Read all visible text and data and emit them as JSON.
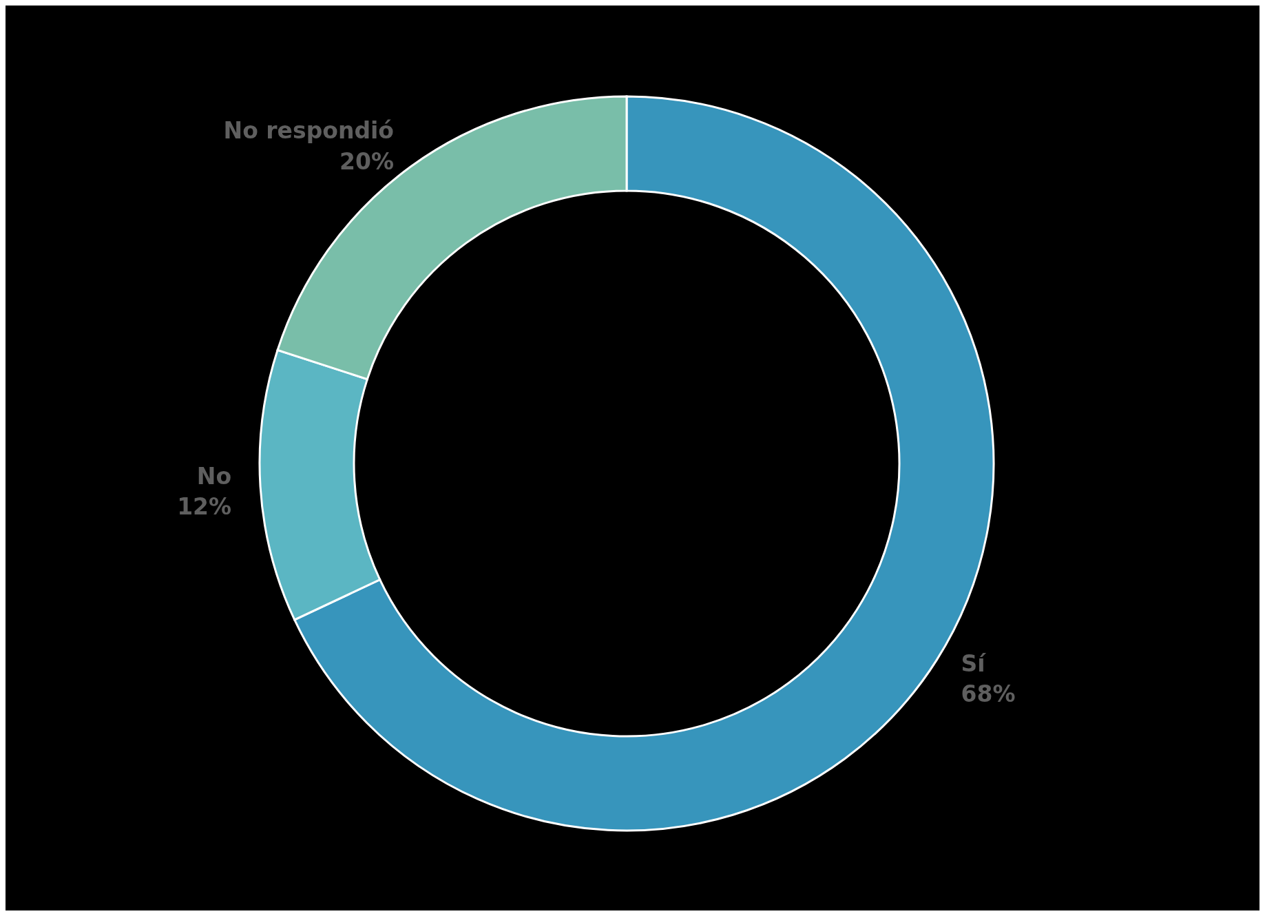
{
  "chart_data": {
    "type": "donut",
    "categories": [
      "Sí",
      "No",
      "No respondió"
    ],
    "values": [
      68,
      12,
      20
    ],
    "colors": [
      "#3795bc",
      "#5bb6c3",
      "#79bea9"
    ],
    "value_labels": [
      "68%",
      "12%",
      "20%"
    ]
  }
}
